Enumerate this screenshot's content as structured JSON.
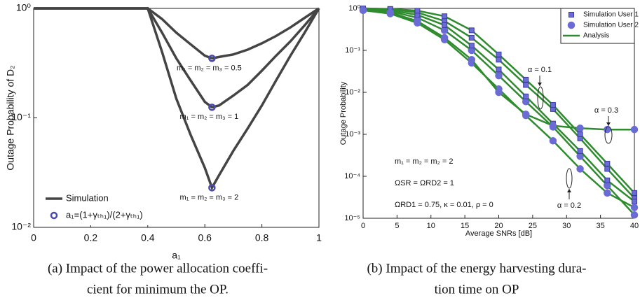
{
  "chart_data": [
    {
      "type": "line",
      "ylog": true,
      "x_label": "a₁",
      "y_label": "Outage Probability of D₂",
      "x": [
        0,
        0.4,
        0.45,
        0.5,
        0.55,
        0.6,
        0.625,
        0.65,
        0.7,
        0.75,
        0.8,
        0.85,
        0.9,
        0.95,
        1
      ],
      "series": [
        {
          "color": "#444444",
          "values": [
            1,
            1,
            0.8,
            0.6,
            0.47,
            0.37,
            0.35,
            0.36,
            0.38,
            0.42,
            0.48,
            0.56,
            0.67,
            0.82,
            1
          ]
        },
        {
          "color": "#444444",
          "values": [
            1,
            1,
            0.6,
            0.35,
            0.22,
            0.14,
            0.125,
            0.13,
            0.16,
            0.2,
            0.27,
            0.37,
            0.5,
            0.7,
            1
          ]
        },
        {
          "color": "#444444",
          "values": [
            1,
            1,
            0.4,
            0.15,
            0.07,
            0.035,
            0.023,
            0.03,
            0.05,
            0.08,
            0.13,
            0.22,
            0.37,
            0.6,
            1
          ]
        }
      ],
      "markers": {
        "color": "#4a4ab0",
        "x": [
          0.625,
          0.625,
          0.625
        ],
        "values": [
          0.35,
          0.125,
          0.023
        ],
        "labels": [
          "m₁ = m₂ = m₃ = 0.5",
          "m₁ = m₂ = m₃ = 1",
          "m₁ = m₂ = m₃ = 2"
        ]
      },
      "legend": [
        {
          "label": "Simulation",
          "kind": "line"
        },
        {
          "label": "a₁=(1+γₜₕ₁)/(2+γₜₕ₁)",
          "kind": "circle"
        }
      ],
      "xlim": [
        0,
        1
      ],
      "xticks": [
        0,
        0.2,
        0.4,
        0.6,
        0.8,
        1
      ],
      "ylim": [
        0.01,
        1
      ],
      "yticks": [
        {
          "value": 1,
          "label": "10⁰"
        },
        {
          "value": 0.1,
          "label": "10⁻¹"
        },
        {
          "value": 0.01,
          "label": "10⁻²"
        }
      ],
      "caption": [
        "(a) Impact of the power allocation coeffi-",
        "cient for minimum the OP."
      ]
    },
    {
      "type": "line",
      "ylog": true,
      "x_label": "Average SNRs [dB]",
      "y_label": "Outage Probability",
      "x": [
        0,
        4,
        8,
        12,
        16,
        20,
        24,
        28,
        32,
        36,
        40
      ],
      "series": [
        {
          "color": "#2e8b2e",
          "marker": "square",
          "values": [
            1,
            0.95,
            0.8,
            0.5,
            0.2,
            0.06,
            0.015,
            0.004,
            0.0008,
            0.00015,
            3e-05
          ]
        },
        {
          "color": "#2e8b2e",
          "marker": "circle",
          "values": [
            0.95,
            0.85,
            0.6,
            0.3,
            0.1,
            0.025,
            0.006,
            0.0015,
            0.0003,
            6e-05,
            1.2e-05
          ]
        },
        {
          "color": "#2e8b2e",
          "marker": "square",
          "values": [
            1,
            0.9,
            0.7,
            0.4,
            0.13,
            0.035,
            0.008,
            0.0018,
            0.0004,
            8e-05,
            2.5e-05
          ]
        },
        {
          "color": "#2e8b2e",
          "marker": "circle",
          "values": [
            0.9,
            0.75,
            0.45,
            0.18,
            0.05,
            0.012,
            0.0028,
            0.0007,
            0.00015,
            4e-05,
            1.8e-05
          ]
        },
        {
          "color": "#2e8b2e",
          "marker": "square",
          "values": [
            1,
            0.97,
            0.88,
            0.65,
            0.3,
            0.08,
            0.02,
            0.005,
            0.001,
            0.0002,
            4e-05
          ]
        },
        {
          "color": "#2e8b2e",
          "marker": "circle",
          "values": [
            0.9,
            0.8,
            0.5,
            0.2,
            0.06,
            0.01,
            0.003,
            0.0016,
            0.0014,
            0.0013,
            0.0013
          ]
        }
      ],
      "marker_color": "#6b6bd6",
      "legend": [
        {
          "label": "Simulation User 1",
          "kind": "square"
        },
        {
          "label": "Simulation User 2",
          "kind": "circle"
        },
        {
          "label": "Analysis",
          "kind": "line"
        }
      ],
      "annotations": [
        "α = 0.1",
        "α = 0.3",
        "α = 0.2",
        "m₁ = m₂ = m₂ = 2",
        "ΩSR = ΩRD2 = 1",
        "ΩRD1 = 0.75, κ = 0.01, ρ = 0"
      ],
      "xlim": [
        0,
        40
      ],
      "xticks": [
        0,
        5,
        10,
        15,
        20,
        25,
        30,
        35,
        40
      ],
      "ylim": [
        1e-05,
        1
      ],
      "yticks": [
        {
          "value": 1,
          "label": "10⁰"
        },
        {
          "value": 0.1,
          "label": "10⁻¹"
        },
        {
          "value": 0.01,
          "label": "10⁻²"
        },
        {
          "value": 0.001,
          "label": "10⁻³"
        },
        {
          "value": 0.0001,
          "label": "10⁻⁴"
        },
        {
          "value": 1e-05,
          "label": "10⁻⁵"
        }
      ],
      "caption": [
        "(b) Impact of the energy harvesting dura-",
        "tion time on OP"
      ]
    }
  ]
}
